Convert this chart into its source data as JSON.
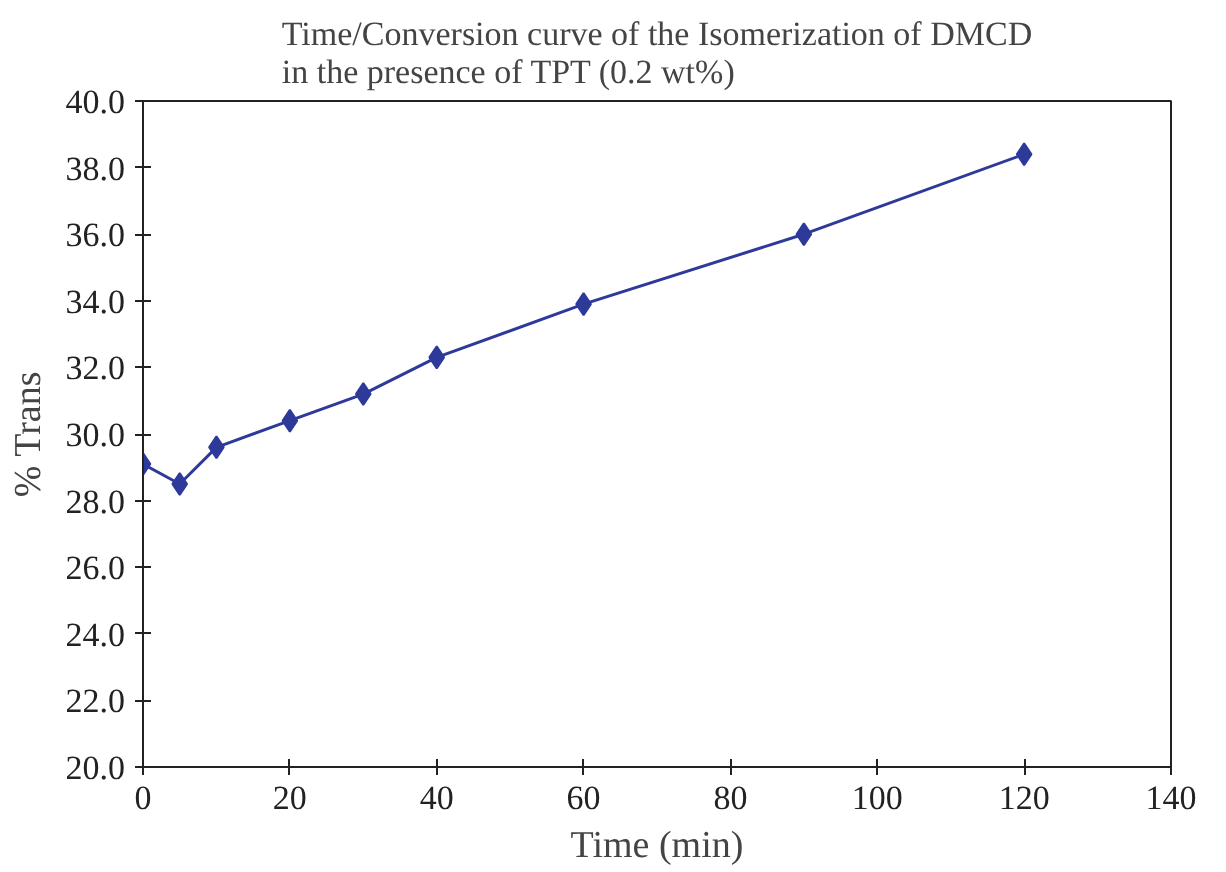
{
  "chart_data": {
    "type": "line",
    "title": "Time/Conversion curve of the Isomerization of DMCD\nin the presence of TPT (0.2 wt%)",
    "xlabel": "Time (min)",
    "ylabel": "% Trans",
    "x": [
      0,
      5,
      10,
      20,
      30,
      40,
      60,
      90,
      120
    ],
    "series": [
      {
        "color": "#2e3a9a",
        "values": [
          29.1,
          28.5,
          29.6,
          30.4,
          31.2,
          32.3,
          33.9,
          36.0,
          38.4
        ]
      }
    ],
    "xlim": [
      0,
      140
    ],
    "xticks": [
      0,
      20,
      40,
      60,
      80,
      100,
      120,
      140
    ],
    "ylim": [
      20,
      40
    ],
    "yticks": [
      {
        "value": 20,
        "label": "20.0"
      },
      {
        "value": 22,
        "label": "22.0"
      },
      {
        "value": 24,
        "label": "24.0"
      },
      {
        "value": 26,
        "label": "26.0"
      },
      {
        "value": 28,
        "label": "28.0"
      },
      {
        "value": 30,
        "label": "30.0"
      },
      {
        "value": 32,
        "label": "32.0"
      },
      {
        "value": 34,
        "label": "34.0"
      },
      {
        "value": 36,
        "label": "36.0"
      },
      {
        "value": 38,
        "label": "38.0"
      },
      {
        "value": 40,
        "label": "40.0"
      }
    ],
    "grid": false,
    "marker": "diamond",
    "line_style": "solid"
  }
}
